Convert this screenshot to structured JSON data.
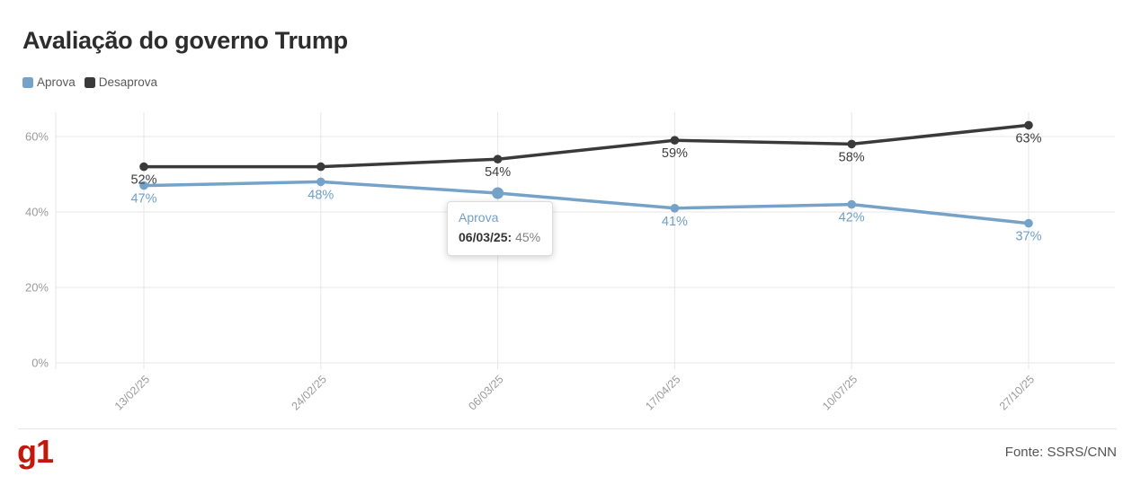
{
  "title": "Avaliação do governo Trump",
  "chart_data": {
    "type": "line",
    "title": "Avaliação do governo Trump",
    "x": [
      "13/02/25",
      "24/02/25",
      "06/03/25",
      "17/04/25",
      "10/07/25",
      "27/10/25"
    ],
    "series": [
      {
        "name": "Aprova",
        "color": "#74a2c8",
        "label_color": "#6f9fc5",
        "values": [
          47,
          48,
          45,
          41,
          42,
          37
        ],
        "labels": [
          "47%",
          "48%",
          "45%",
          "41%",
          "42%",
          "37%"
        ]
      },
      {
        "name": "Desaprova",
        "color": "#3a3a3a",
        "label_color": "#3d3d3d",
        "values": [
          52,
          52,
          54,
          59,
          58,
          63
        ],
        "labels": [
          "52%",
          null,
          "54%",
          "59%",
          "58%",
          "63%"
        ]
      }
    ],
    "yticks": [
      0,
      20,
      40,
      60
    ],
    "ytick_labels": [
      "0%",
      "20%",
      "40%",
      "60%"
    ],
    "ylim": [
      0,
      66
    ],
    "grid": true,
    "legend_position": "top-left",
    "highlight": {
      "series": "Aprova",
      "index": 2
    }
  },
  "tooltip": {
    "series": "Aprova",
    "date_label": "06/03/25:",
    "value": "45%"
  },
  "footer": {
    "logo": "g1",
    "source": "Fonte: SSRS/CNN"
  },
  "colors": {
    "aprova": "#74a2c8",
    "desaprova": "#3a3a3a",
    "grid": "#e7e7e7",
    "axis_label": "#9b9b9b",
    "brand_red": "#c4170c"
  }
}
